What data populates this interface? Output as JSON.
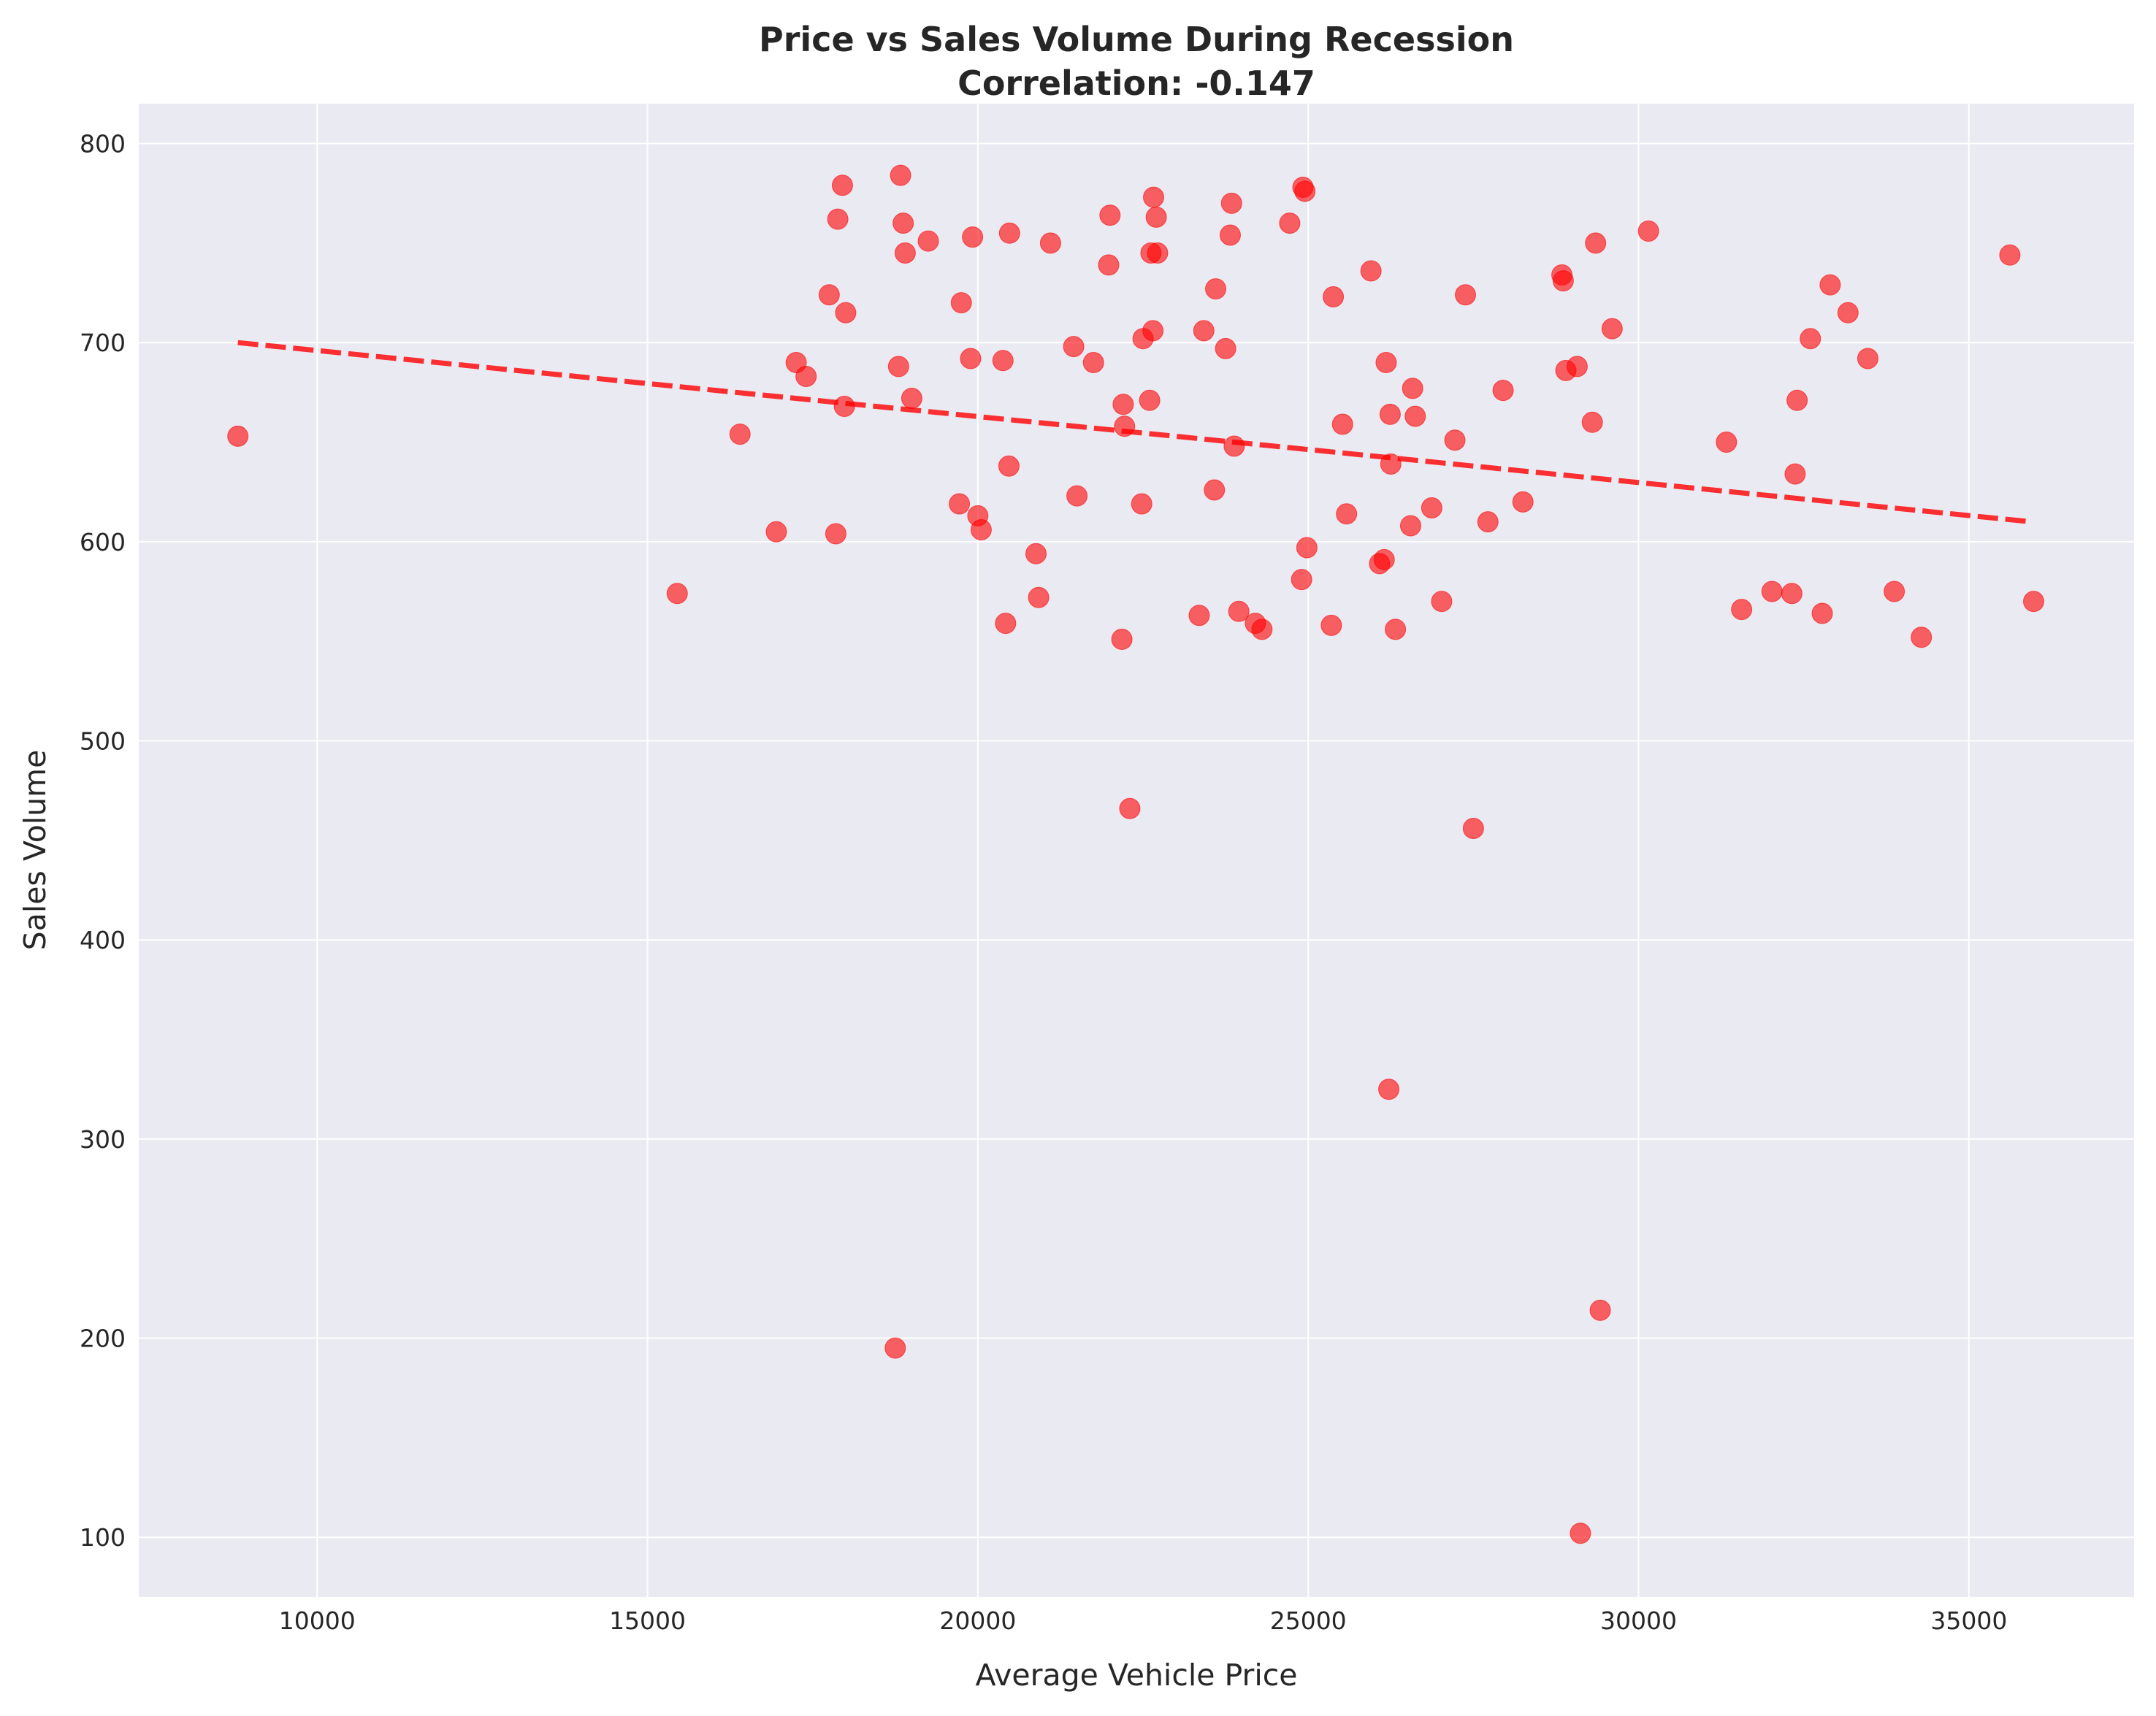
{
  "chart_data": {
    "type": "scatter",
    "title_line1": "Price vs Sales Volume During Recession",
    "title_line2": "Correlation: -0.147",
    "xlabel": "Average Vehicle Price",
    "ylabel": "Sales Volume",
    "xlim": [
      7300,
      37500
    ],
    "ylim": [
      70,
      820
    ],
    "xticks": [
      10000,
      15000,
      20000,
      25000,
      30000,
      35000
    ],
    "yticks": [
      100,
      200,
      300,
      400,
      500,
      600,
      700,
      800
    ],
    "grid": true,
    "point_color": "#ff0000",
    "trend_color": "#ff0000",
    "background_color": "#eaeaf2",
    "trendline": {
      "x": [
        8800,
        35950
      ],
      "y": [
        700,
        610
      ]
    },
    "points": [
      {
        "x": 8800,
        "y": 653
      },
      {
        "x": 15450,
        "y": 574
      },
      {
        "x": 16400,
        "y": 654
      },
      {
        "x": 16950,
        "y": 605
      },
      {
        "x": 17250,
        "y": 690
      },
      {
        "x": 17400,
        "y": 683
      },
      {
        "x": 17750,
        "y": 724
      },
      {
        "x": 17850,
        "y": 604
      },
      {
        "x": 17880,
        "y": 762
      },
      {
        "x": 17950,
        "y": 779
      },
      {
        "x": 17980,
        "y": 668
      },
      {
        "x": 18000,
        "y": 715
      },
      {
        "x": 18750,
        "y": 195
      },
      {
        "x": 18800,
        "y": 688
      },
      {
        "x": 18830,
        "y": 784
      },
      {
        "x": 18870,
        "y": 760
      },
      {
        "x": 18900,
        "y": 745
      },
      {
        "x": 19000,
        "y": 672
      },
      {
        "x": 19250,
        "y": 751
      },
      {
        "x": 19720,
        "y": 619
      },
      {
        "x": 19750,
        "y": 720
      },
      {
        "x": 19890,
        "y": 692
      },
      {
        "x": 19920,
        "y": 753
      },
      {
        "x": 20000,
        "y": 613
      },
      {
        "x": 20050,
        "y": 606
      },
      {
        "x": 20380,
        "y": 691
      },
      {
        "x": 20420,
        "y": 559
      },
      {
        "x": 20470,
        "y": 638
      },
      {
        "x": 20480,
        "y": 755
      },
      {
        "x": 20880,
        "y": 594
      },
      {
        "x": 20920,
        "y": 572
      },
      {
        "x": 21100,
        "y": 750
      },
      {
        "x": 21450,
        "y": 698
      },
      {
        "x": 21500,
        "y": 623
      },
      {
        "x": 21750,
        "y": 690
      },
      {
        "x": 21980,
        "y": 739
      },
      {
        "x": 22000,
        "y": 764
      },
      {
        "x": 22180,
        "y": 551
      },
      {
        "x": 22200,
        "y": 669
      },
      {
        "x": 22220,
        "y": 658
      },
      {
        "x": 22300,
        "y": 466
      },
      {
        "x": 22480,
        "y": 619
      },
      {
        "x": 22500,
        "y": 702
      },
      {
        "x": 22600,
        "y": 671
      },
      {
        "x": 22620,
        "y": 745
      },
      {
        "x": 22650,
        "y": 706
      },
      {
        "x": 22660,
        "y": 773
      },
      {
        "x": 22700,
        "y": 763
      },
      {
        "x": 22720,
        "y": 745
      },
      {
        "x": 23350,
        "y": 563
      },
      {
        "x": 23420,
        "y": 706
      },
      {
        "x": 23580,
        "y": 626
      },
      {
        "x": 23600,
        "y": 727
      },
      {
        "x": 23750,
        "y": 697
      },
      {
        "x": 23820,
        "y": 754
      },
      {
        "x": 23840,
        "y": 770
      },
      {
        "x": 23880,
        "y": 648
      },
      {
        "x": 23950,
        "y": 565
      },
      {
        "x": 24200,
        "y": 559
      },
      {
        "x": 24300,
        "y": 556
      },
      {
        "x": 24720,
        "y": 760
      },
      {
        "x": 24900,
        "y": 581
      },
      {
        "x": 24920,
        "y": 778
      },
      {
        "x": 24950,
        "y": 776
      },
      {
        "x": 24980,
        "y": 597
      },
      {
        "x": 25350,
        "y": 558
      },
      {
        "x": 25380,
        "y": 723
      },
      {
        "x": 25520,
        "y": 659
      },
      {
        "x": 25580,
        "y": 614
      },
      {
        "x": 25950,
        "y": 736
      },
      {
        "x": 26080,
        "y": 589
      },
      {
        "x": 26150,
        "y": 591
      },
      {
        "x": 26180,
        "y": 690
      },
      {
        "x": 26220,
        "y": 325
      },
      {
        "x": 26240,
        "y": 664
      },
      {
        "x": 26250,
        "y": 639
      },
      {
        "x": 26320,
        "y": 556
      },
      {
        "x": 26550,
        "y": 608
      },
      {
        "x": 26580,
        "y": 677
      },
      {
        "x": 26620,
        "y": 663
      },
      {
        "x": 26870,
        "y": 617
      },
      {
        "x": 27020,
        "y": 570
      },
      {
        "x": 27220,
        "y": 651
      },
      {
        "x": 27380,
        "y": 724
      },
      {
        "x": 27500,
        "y": 456
      },
      {
        "x": 27720,
        "y": 610
      },
      {
        "x": 27950,
        "y": 676
      },
      {
        "x": 28250,
        "y": 620
      },
      {
        "x": 28840,
        "y": 734
      },
      {
        "x": 28860,
        "y": 731
      },
      {
        "x": 28900,
        "y": 686
      },
      {
        "x": 29070,
        "y": 688
      },
      {
        "x": 29120,
        "y": 102
      },
      {
        "x": 29300,
        "y": 660
      },
      {
        "x": 29350,
        "y": 750
      },
      {
        "x": 29420,
        "y": 214
      },
      {
        "x": 29600,
        "y": 707
      },
      {
        "x": 30150,
        "y": 756
      },
      {
        "x": 31330,
        "y": 650
      },
      {
        "x": 31560,
        "y": 566
      },
      {
        "x": 32020,
        "y": 575
      },
      {
        "x": 32320,
        "y": 574
      },
      {
        "x": 32370,
        "y": 634
      },
      {
        "x": 32400,
        "y": 671
      },
      {
        "x": 32600,
        "y": 702
      },
      {
        "x": 32780,
        "y": 564
      },
      {
        "x": 32900,
        "y": 729
      },
      {
        "x": 33170,
        "y": 715
      },
      {
        "x": 33470,
        "y": 692
      },
      {
        "x": 33870,
        "y": 575
      },
      {
        "x": 34280,
        "y": 552
      },
      {
        "x": 35620,
        "y": 744
      },
      {
        "x": 35980,
        "y": 570
      }
    ]
  }
}
